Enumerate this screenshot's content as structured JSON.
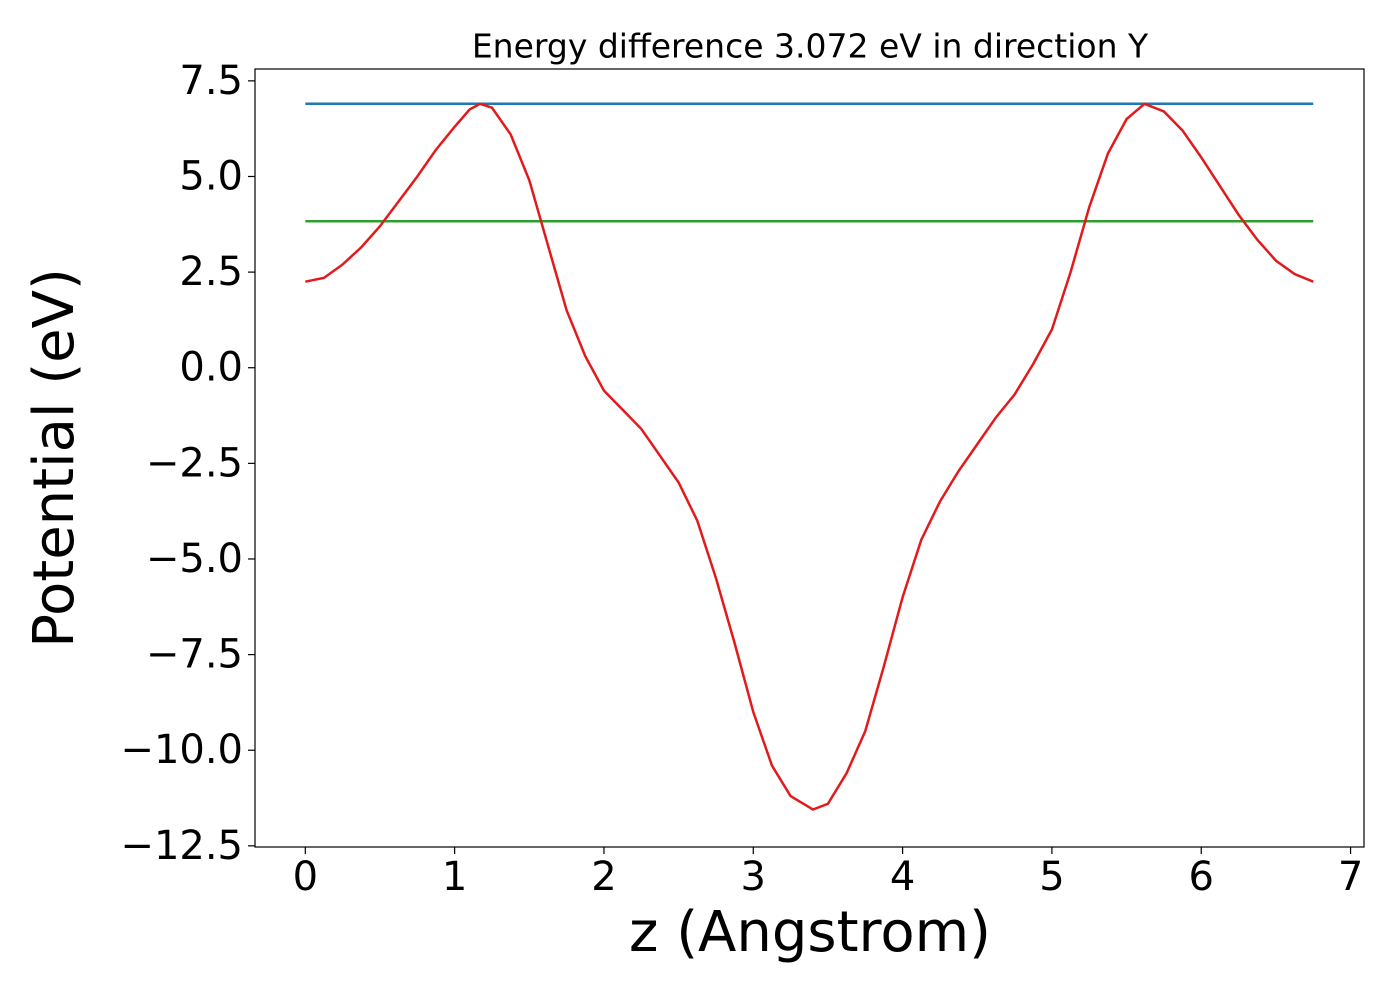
{
  "chart_data": {
    "type": "line",
    "title": "Energy difference 3.072 eV in direction Y",
    "x_label": "z (Angstrom)",
    "y_label": "Potential (eV)",
    "xlim": [
      -0.337,
      7.09
    ],
    "ylim": [
      -12.53,
      7.81
    ],
    "xticks": [
      0,
      1,
      2,
      3,
      4,
      5,
      6,
      7
    ],
    "yticks": [
      {
        "value": -12.5,
        "label": "−12.5"
      },
      {
        "value": -10,
        "label": "−10.0"
      },
      {
        "value": -7.5,
        "label": "−7.5"
      },
      {
        "value": -5,
        "label": "−5.0"
      },
      {
        "value": -2.5,
        "label": "−2.5"
      },
      {
        "value": 0,
        "label": "0.0"
      },
      2.5,
      {
        "value": 5,
        "label": "5.0"
      },
      7.5
    ],
    "series": [
      {
        "color": "#1f77b4",
        "x": [
          0,
          6.75
        ],
        "values": [
          6.9,
          6.9
        ]
      },
      {
        "color": "#2ca02c",
        "x": [
          0,
          6.75
        ],
        "values": [
          3.83,
          3.83
        ]
      },
      {
        "color": "#e31a1c",
        "x": [
          0,
          0.125,
          0.25,
          0.375,
          0.5,
          0.625,
          0.75,
          0.875,
          1.0,
          1.1,
          1.17,
          1.25,
          1.375,
          1.5,
          1.625,
          1.75,
          1.875,
          2.0,
          2.125,
          2.25,
          2.375,
          2.5,
          2.625,
          2.75,
          2.875,
          3.0,
          3.125,
          3.25,
          3.4,
          3.5,
          3.625,
          3.75,
          3.875,
          4.0,
          4.125,
          4.25,
          4.375,
          4.5,
          4.625,
          4.75,
          4.875,
          5.0,
          5.125,
          5.25,
          5.375,
          5.5,
          5.62,
          5.75,
          5.875,
          6.0,
          6.125,
          6.25,
          6.375,
          6.5,
          6.625,
          6.75
        ],
        "values": [
          2.25,
          2.35,
          2.7,
          3.15,
          3.7,
          4.35,
          5.0,
          5.7,
          6.3,
          6.75,
          6.9,
          6.8,
          6.1,
          4.9,
          3.2,
          1.5,
          0.3,
          -0.6,
          -1.1,
          -1.6,
          -2.3,
          -3.0,
          -4.0,
          -5.5,
          -7.2,
          -9.0,
          -10.4,
          -11.2,
          -11.55,
          -11.4,
          -10.6,
          -9.5,
          -7.8,
          -6.0,
          -4.5,
          -3.5,
          -2.7,
          -2.0,
          -1.3,
          -0.7,
          0.1,
          1.0,
          2.5,
          4.2,
          5.6,
          6.5,
          6.9,
          6.7,
          6.2,
          5.5,
          4.75,
          4.0,
          3.35,
          2.8,
          2.45,
          2.25
        ]
      }
    ]
  }
}
